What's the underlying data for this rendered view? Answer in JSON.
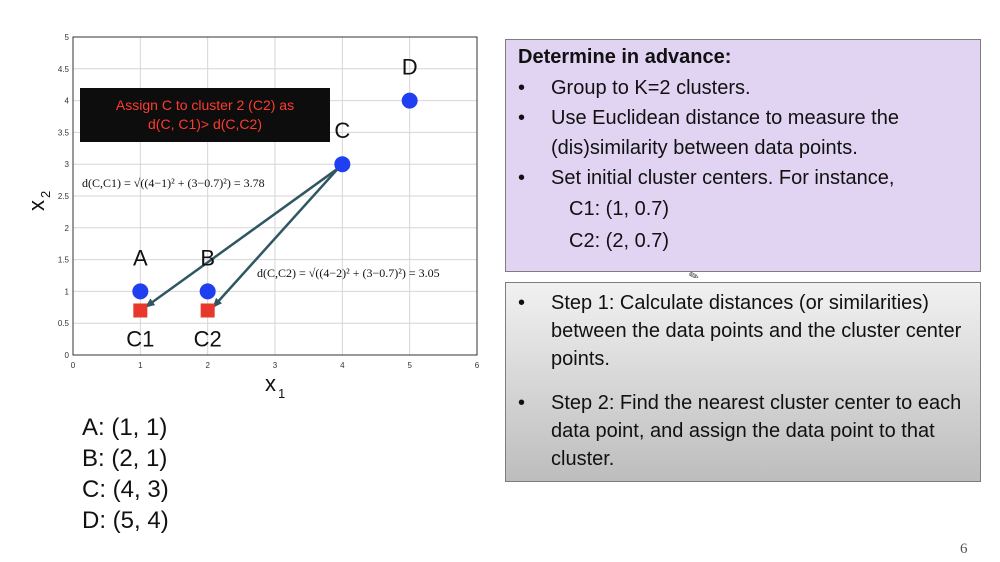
{
  "chart_data": {
    "type": "scatter",
    "xlabel": "x",
    "xlabel_sub": "1",
    "ylabel": "x",
    "ylabel_sub": "2",
    "xlim": [
      0,
      6
    ],
    "ylim": [
      0,
      5
    ],
    "xticks": [
      "0",
      "1",
      "2",
      "3",
      "4",
      "5",
      "6"
    ],
    "yticks": [
      "0",
      "0.5",
      "1",
      "1.5",
      "2",
      "2.5",
      "3",
      "3.5",
      "4",
      "4.5",
      "5"
    ],
    "grid": true,
    "points": [
      {
        "label": "A",
        "x": 1,
        "y": 1,
        "color": "#1f3ff0"
      },
      {
        "label": "B",
        "x": 2,
        "y": 1,
        "color": "#1f3ff0"
      },
      {
        "label": "C",
        "x": 4,
        "y": 3,
        "color": "#1f3ff0"
      },
      {
        "label": "D",
        "x": 5,
        "y": 4,
        "color": "#1f3ff0"
      }
    ],
    "centers": [
      {
        "label": "C1",
        "x": 1,
        "y": 0.7,
        "color": "#e8372c"
      },
      {
        "label": "C2",
        "x": 2,
        "y": 0.7,
        "color": "#e8372c"
      }
    ],
    "arrows": [
      {
        "from": [
          4,
          3
        ],
        "to": [
          1,
          0.7
        ],
        "color": "#2f5763"
      },
      {
        "from": [
          4,
          3
        ],
        "to": [
          2,
          0.7
        ],
        "color": "#2f5763"
      }
    ]
  },
  "assign_box": {
    "line1": "Assign C to cluster 2 (C2) as",
    "line2": "d(C, C1)> d(C,C2)"
  },
  "formula_c1": "d(C,C1) = √((4−1)² + (3−0.7)²) = 3.78",
  "formula_c2": "d(C,C2) = √((4−2)² + (3−0.7)²) = 3.05",
  "coords": [
    "A: (1, 1)",
    "B: (2, 1)",
    "C: (4, 3)",
    "D: (5, 4)"
  ],
  "box1": {
    "title": "Determine in advance:",
    "bullets": [
      "Group to K=2 clusters.",
      "Use Euclidean distance to measure the (dis)similarity between data points.",
      "Set initial cluster centers. For instance,"
    ],
    "centers": [
      "C1: (1, 0.7)",
      "C2: (2, 0.7)"
    ]
  },
  "box2": {
    "bullets": [
      "Step 1: Calculate distances (or similarities) between the data points and the cluster center points.",
      "Step 2: Find the nearest cluster center to each data point, and assign the data point to that cluster."
    ]
  },
  "bullet_char": "•",
  "page_number": "6"
}
